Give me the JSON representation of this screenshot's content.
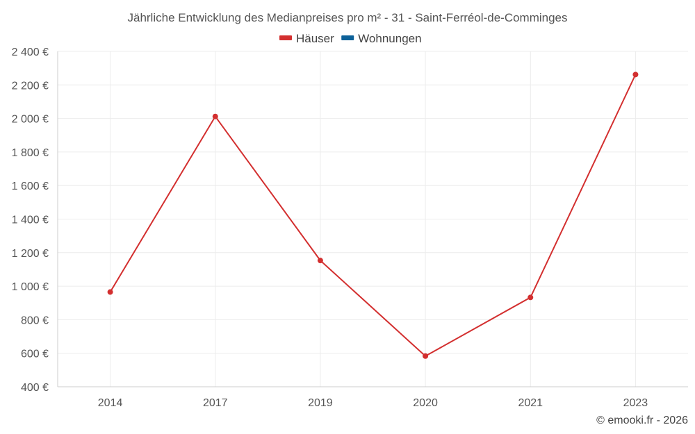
{
  "chart_data": {
    "type": "line",
    "title": "Jährliche Entwicklung des Medianpreises pro m² - 31 - Saint-Ferréol-de-Comminges",
    "categories": [
      "2014",
      "2017",
      "2019",
      "2020",
      "2021",
      "2023"
    ],
    "series": [
      {
        "name": "Häuser",
        "color": "#d32f2f",
        "values": [
          965,
          2012,
          1153,
          583,
          933,
          2262
        ]
      },
      {
        "name": "Wohnungen",
        "color": "#0d6199",
        "values": [
          null,
          null,
          null,
          null,
          null,
          null
        ]
      }
    ],
    "ylim": [
      400,
      2400
    ],
    "yticks": [
      400,
      600,
      800,
      1000,
      1200,
      1400,
      1600,
      1800,
      2000,
      2200,
      2400
    ],
    "ytick_labels": [
      "400 €",
      "600 €",
      "800 €",
      "1 000 €",
      "1 200 €",
      "1 400 €",
      "1 600 €",
      "1 800 €",
      "2 000 €",
      "2 200 €",
      "2 400 €"
    ],
    "xlabel": "",
    "ylabel": "",
    "grid": true,
    "legend_position": "top-center"
  },
  "credit": "© emooki.fr - 2026"
}
